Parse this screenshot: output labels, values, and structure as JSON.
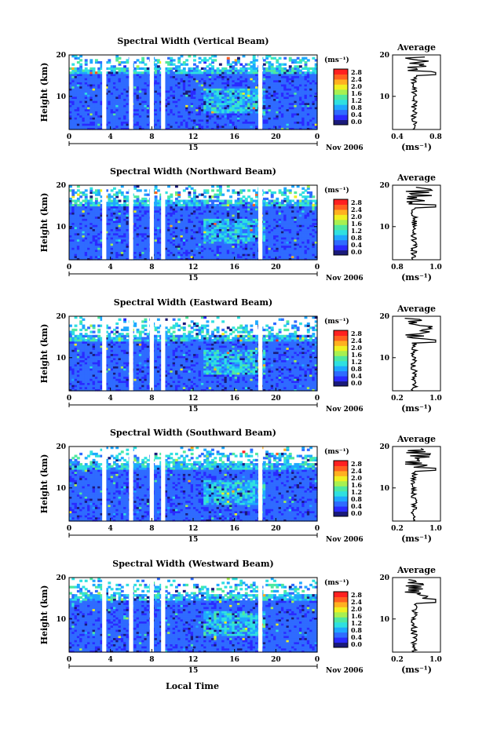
{
  "panels": [
    {
      "title": "Spectral Width (Vertical Beam)",
      "avg_title": "Average",
      "avg_xticks": [
        "0.4",
        "0.8"
      ],
      "seed": 11,
      "clip": 17.0
    },
    {
      "title": "Spectral Width (Northward Beam)",
      "avg_title": "Average",
      "avg_xticks": [
        "0.8",
        "1.0"
      ],
      "seed": 23,
      "clip": 16.5
    },
    {
      "title": "Spectral Width (Eastward Beam)",
      "avg_title": "Average",
      "avg_xticks": [
        "0.2",
        "1.0"
      ],
      "seed": 37,
      "clip": 15.5
    },
    {
      "title": "Spectral Width (Southward Beam)",
      "avg_title": "Average",
      "avg_xticks": [
        "0.2",
        "1.0"
      ],
      "seed": 41,
      "clip": 16.0
    },
    {
      "title": "Spectral Width (Westward Beam)",
      "avg_title": "Average",
      "avg_xticks": [
        "0.2",
        "1.0"
      ],
      "seed": 53,
      "clip": 15.8
    }
  ],
  "ylabel": "Height (km)",
  "yticks": [
    "10",
    "20"
  ],
  "xticks": [
    "0",
    "4",
    "8",
    "12",
    "16",
    "20",
    "0"
  ],
  "date_day": "15",
  "date_label": "Nov 2006",
  "colorbar_unit": "(ms⁻¹)",
  "colorbar_ticks": [
    "0.0",
    "0.4",
    "0.8",
    "1.2",
    "1.6",
    "2.0",
    "2.4",
    "2.8"
  ],
  "avg_unit": "(ms⁻¹)",
  "xlabel": "Local Time",
  "colors": {
    "scale": [
      "#1a1a7a",
      "#2a2aff",
      "#2f6bff",
      "#1fa8ff",
      "#2fe0e0",
      "#4fe8a0",
      "#a8f050",
      "#f0f020",
      "#ffb020",
      "#ff6020",
      "#ff2020"
    ]
  },
  "chart_data": {
    "type": "heatmap",
    "x_range_hours": [
      0,
      24
    ],
    "y_range_km": [
      2,
      20
    ],
    "value_range": [
      0.0,
      2.8
    ],
    "data_gaps_hours": [
      [
        3.2,
        3.6
      ],
      [
        5.8,
        6.2
      ],
      [
        7.8,
        8.2
      ],
      [
        8.9,
        9.3
      ],
      [
        18.3,
        18.7
      ]
    ]
  }
}
